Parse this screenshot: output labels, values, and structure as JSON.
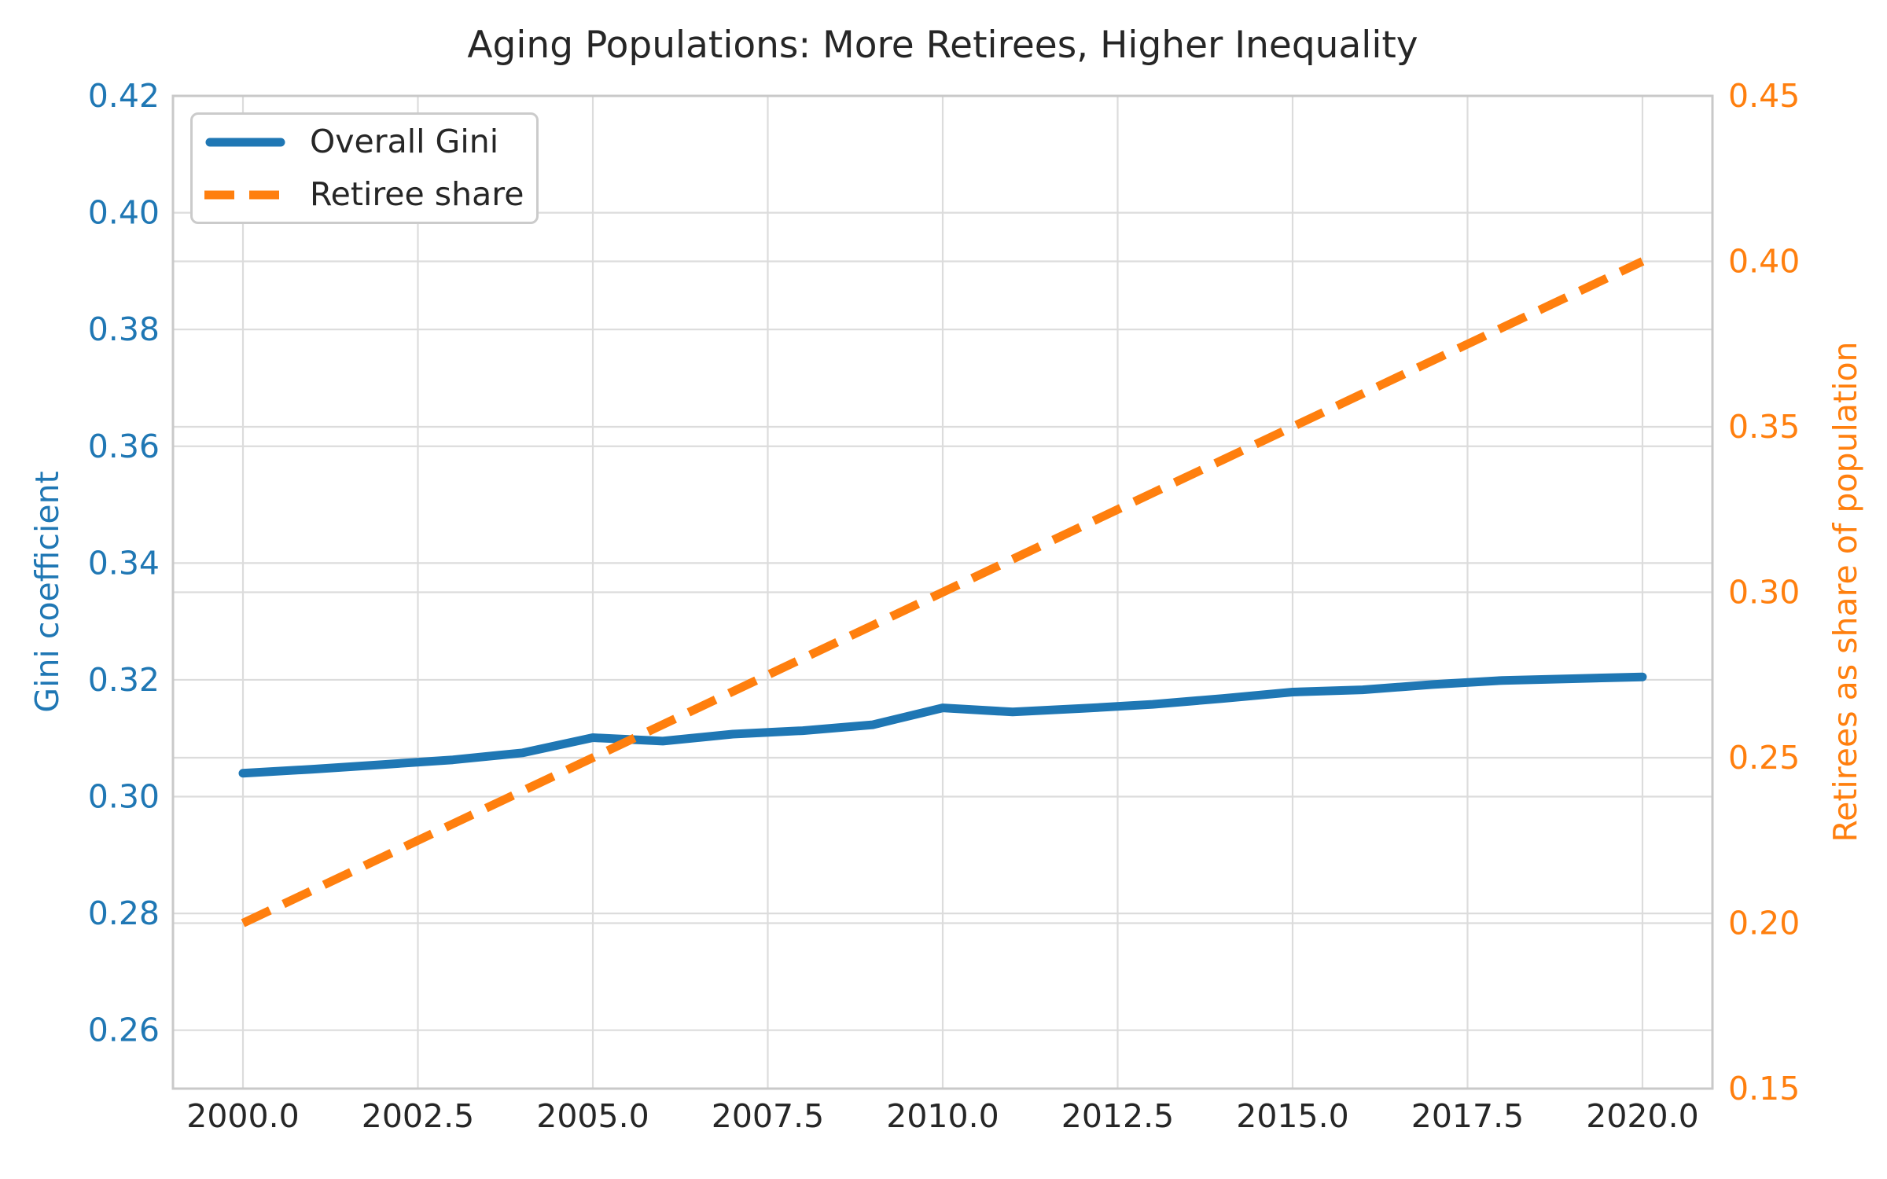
{
  "chart_data": {
    "type": "line",
    "title": "Aging Populations: More Retirees, Higher Inequality",
    "x": [
      2000,
      2001,
      2002,
      2003,
      2004,
      2005,
      2006,
      2007,
      2008,
      2009,
      2010,
      2011,
      2012,
      2013,
      2014,
      2015,
      2016,
      2017,
      2018,
      2019,
      2020
    ],
    "series": [
      {
        "name": "Overall Gini",
        "axis": "left",
        "color": "#1f77b4",
        "style": "solid",
        "values": [
          0.304,
          0.3047,
          0.3055,
          0.3063,
          0.3075,
          0.3101,
          0.3095,
          0.3107,
          0.3113,
          0.3123,
          0.3152,
          0.3145,
          0.3151,
          0.3158,
          0.3168,
          0.3179,
          0.3183,
          0.3192,
          0.3199,
          0.3202,
          0.3205
        ]
      },
      {
        "name": "Retiree share",
        "axis": "right",
        "color": "#ff7f0e",
        "style": "dashed",
        "values": [
          0.2,
          0.21,
          0.22,
          0.23,
          0.24,
          0.25,
          0.26,
          0.27,
          0.28,
          0.29,
          0.3,
          0.31,
          0.32,
          0.33,
          0.34,
          0.35,
          0.36,
          0.37,
          0.38,
          0.39,
          0.4
        ]
      }
    ],
    "x_axis": {
      "range": [
        1999,
        2021
      ],
      "ticks": [
        2000,
        2002.5,
        2005,
        2007.5,
        2010,
        2012.5,
        2015,
        2017.5,
        2020
      ],
      "tick_labels": [
        "2000.0",
        "2002.5",
        "2005.0",
        "2007.5",
        "2010.0",
        "2012.5",
        "2015.0",
        "2017.5",
        "2020.0"
      ],
      "tick_color": "#262626"
    },
    "y_left": {
      "label": "Gini coefficient",
      "color": "#1f77b4",
      "range": [
        0.25,
        0.42
      ],
      "ticks": [
        0.26,
        0.28,
        0.3,
        0.32,
        0.34,
        0.36,
        0.38,
        0.4,
        0.42
      ],
      "tick_labels": [
        "0.26",
        "0.28",
        "0.30",
        "0.32",
        "0.34",
        "0.36",
        "0.38",
        "0.40",
        "0.42"
      ]
    },
    "y_right": {
      "label": "Retirees as share of population",
      "color": "#ff7f0e",
      "range": [
        0.15,
        0.45
      ],
      "ticks": [
        0.15,
        0.2,
        0.25,
        0.3,
        0.35,
        0.4,
        0.45
      ],
      "tick_labels": [
        "0.15",
        "0.20",
        "0.25",
        "0.30",
        "0.35",
        "0.40",
        "0.45"
      ]
    },
    "legend": {
      "position": "upper left",
      "entries": [
        "Overall Gini",
        "Retiree share"
      ]
    },
    "grid": true
  }
}
